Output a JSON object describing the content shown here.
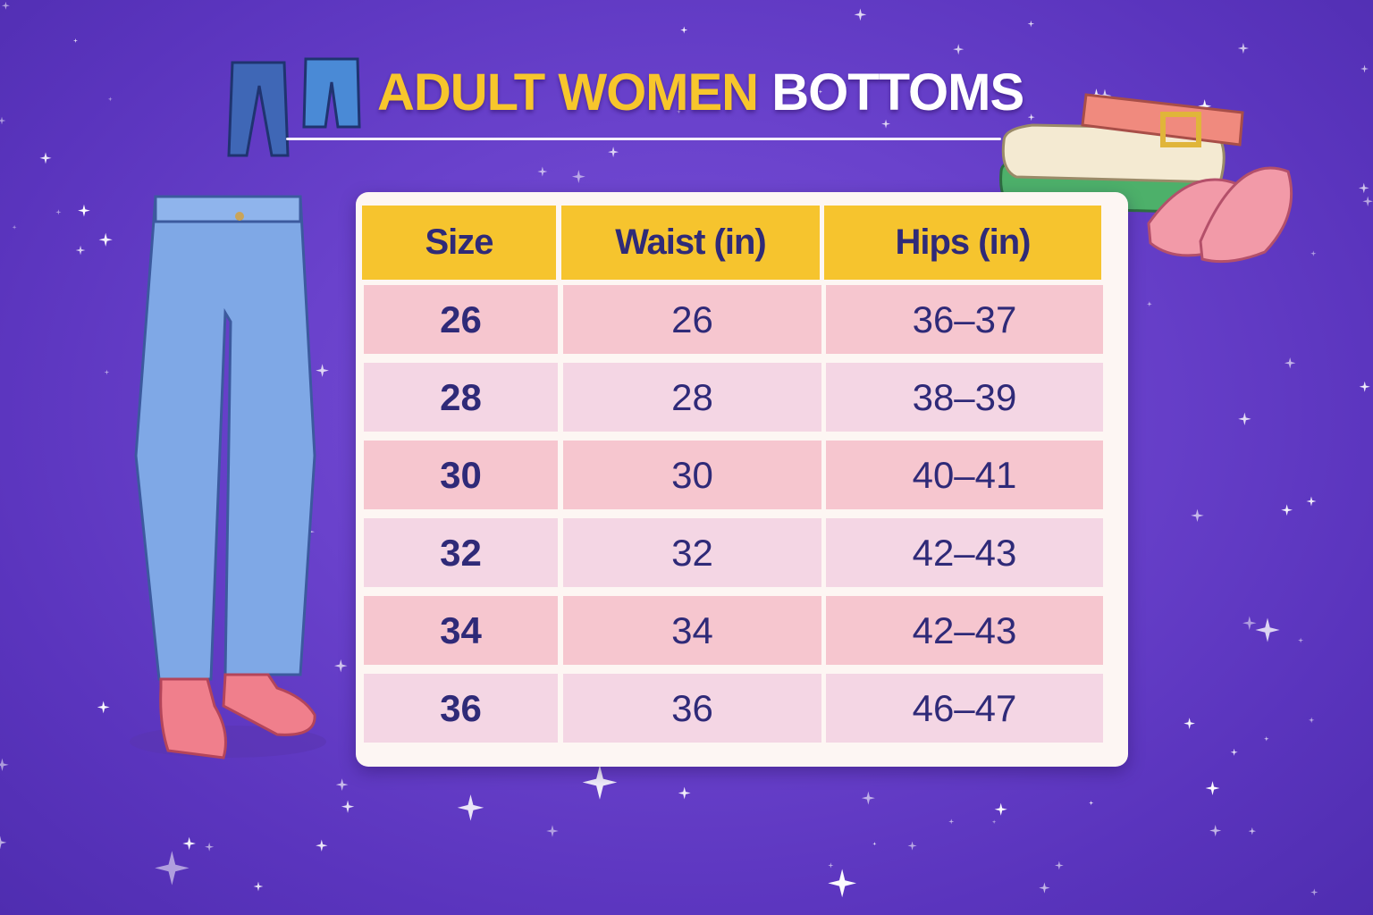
{
  "title": {
    "part1": "ADULT WOMEN",
    "part2": "BOTTOMS"
  },
  "colors": {
    "background": "#6a42cc",
    "title_accent": "#f7c62c",
    "header": "#f6c42e",
    "text": "#2f2a78",
    "row_pink": "#f6c6cf",
    "row_light": "#f4d6e4"
  },
  "table": {
    "headers": [
      "Size",
      "Waist (in)",
      "Hips (in)"
    ],
    "rows": [
      [
        "26",
        "26",
        "36–37"
      ],
      [
        "28",
        "28",
        "38–39"
      ],
      [
        "30",
        "30",
        "40–41"
      ],
      [
        "32",
        "32",
        "42–43"
      ],
      [
        "34",
        "34",
        "42–43"
      ],
      [
        "36",
        "36",
        "46–47"
      ]
    ]
  },
  "illustrations": [
    "jeans-icon",
    "shorts-icon",
    "jeans-with-shoes",
    "folded-clothes-belt-shoes"
  ]
}
